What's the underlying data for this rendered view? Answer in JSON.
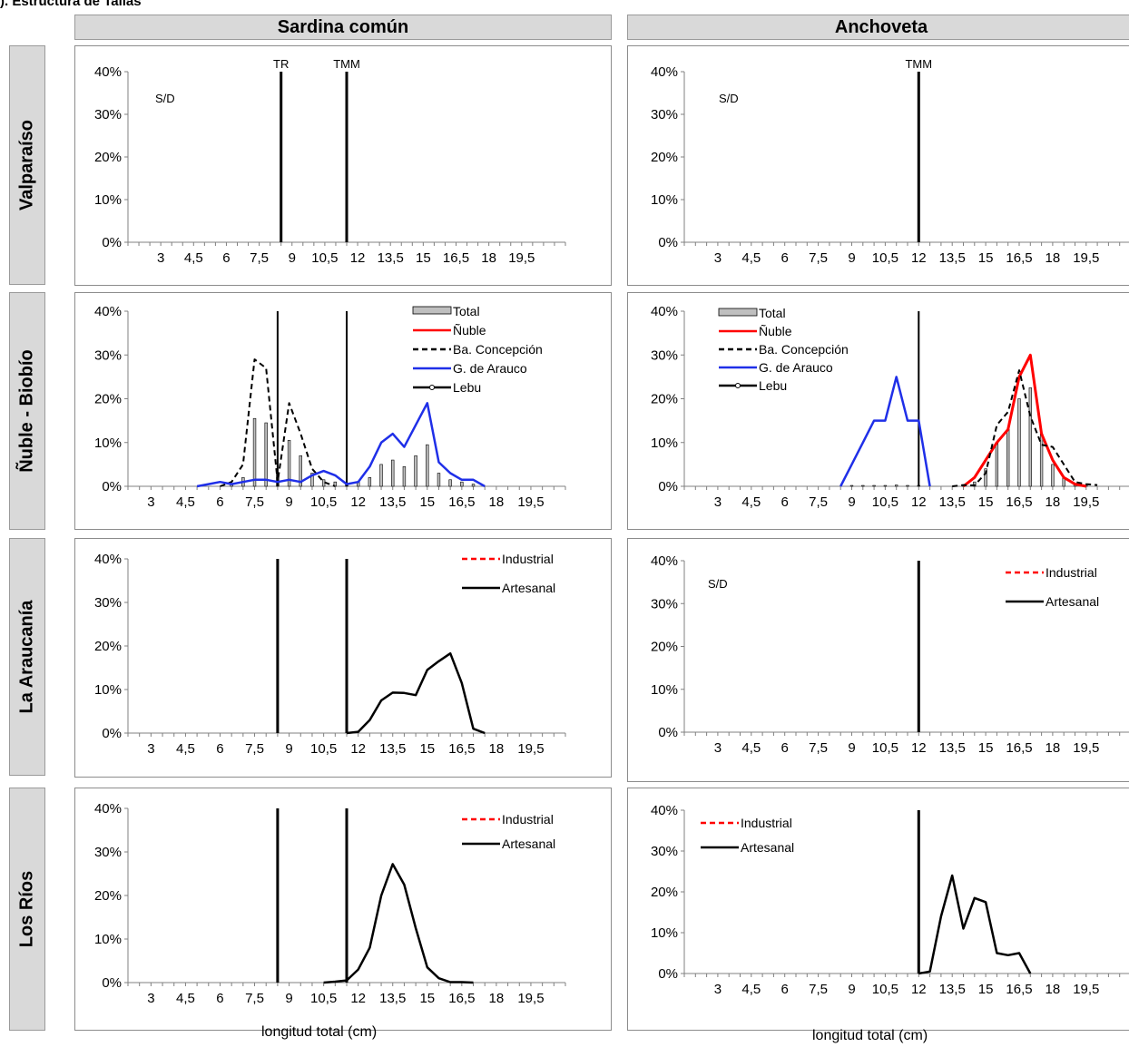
{
  "figure_title": ").  Estructura de Tallas",
  "column_headers": [
    "Sardina común",
    "Anchoveta"
  ],
  "row_headers": [
    "Valparaíso",
    "Ñuble - Biobío",
    "La Araucanía",
    "Los Ríos"
  ],
  "xlabel": "longitud total (cm)",
  "colors": {
    "nuble": "#ff0000",
    "arauco": "#1f2fe8",
    "black": "#000000",
    "bar_fill": "#bfbfbf",
    "header_bg": "#d9d9d9"
  },
  "chart_data": [
    {
      "name": "sardina-valparaiso",
      "type": "line",
      "xlim": [
        1.5,
        21.5
      ],
      "ylim": [
        0,
        0.4
      ],
      "x_ticks": [
        "3",
        "4,5",
        "6",
        "7,5",
        "9",
        "10,5",
        "12",
        "13,5",
        "15",
        "16,5",
        "18",
        "19,5"
      ],
      "y_ticks": [
        "0%",
        "10%",
        "20%",
        "30%",
        "40%"
      ],
      "ref_lines": [
        {
          "x": 8.5,
          "label": "TR",
          "width": 3
        },
        {
          "x": 11.5,
          "label": "TMM",
          "width": 3
        }
      ],
      "note": "S/D",
      "series": [],
      "legend": []
    },
    {
      "name": "anchoveta-valparaiso",
      "type": "line",
      "xlim": [
        1.5,
        21.5
      ],
      "ylim": [
        0,
        0.4
      ],
      "x_ticks": [
        "3",
        "4,5",
        "6",
        "7,5",
        "9",
        "10,5",
        "12",
        "13,5",
        "15",
        "16,5",
        "18",
        "19,5"
      ],
      "y_ticks": [
        "0%",
        "10%",
        "20%",
        "30%",
        "40%"
      ],
      "ref_lines": [
        {
          "x": 12,
          "label": "TMM",
          "width": 3
        }
      ],
      "note": "S/D",
      "series": [],
      "legend": []
    },
    {
      "name": "sardina-nuble-biobio",
      "type": "line",
      "xlim": [
        2,
        21
      ],
      "ylim": [
        0,
        0.4
      ],
      "x_ticks": [
        "3",
        "4,5",
        "6",
        "7,5",
        "9",
        "10,5",
        "12",
        "13,5",
        "15",
        "16,5",
        "18",
        "19,5"
      ],
      "y_ticks": [
        "0%",
        "10%",
        "20%",
        "30%",
        "40%"
      ],
      "ref_lines": [
        {
          "x": 8.5,
          "width": 2
        },
        {
          "x": 11.5,
          "width": 2
        }
      ],
      "bars": {
        "name": "Total",
        "x": [
          6.5,
          7,
          7.5,
          8,
          8.5,
          9,
          9.5,
          10,
          10.5,
          11,
          11.5,
          12,
          12.5,
          13,
          13.5,
          14,
          14.5,
          15,
          15.5,
          16,
          16.5,
          17
        ],
        "values": [
          0.005,
          0.02,
          0.155,
          0.145,
          0.03,
          0.105,
          0.07,
          0.03,
          0.015,
          0.01,
          0.005,
          0.01,
          0.02,
          0.05,
          0.06,
          0.045,
          0.07,
          0.095,
          0.03,
          0.015,
          0.01,
          0.005
        ]
      },
      "series": [
        {
          "name": "Ba. Concepción",
          "style": "dashed",
          "color": "#000000",
          "width": 2,
          "x": [
            6,
            6.5,
            7,
            7.5,
            8,
            8.5,
            9,
            9.5,
            10,
            10.5,
            11
          ],
          "y": [
            0,
            0.01,
            0.05,
            0.29,
            0.27,
            0.01,
            0.19,
            0.12,
            0.04,
            0.01,
            0
          ]
        },
        {
          "name": "G. de Arauco",
          "style": "solid",
          "color": "#1f2fe8",
          "width": 2.5,
          "x": [
            5,
            5.5,
            6,
            6.5,
            7,
            7.5,
            8,
            8.5,
            9,
            9.5,
            10,
            10.5,
            11,
            11.5,
            12,
            12.5,
            13,
            13.5,
            14,
            14.5,
            15,
            15.5,
            16,
            16.5,
            17,
            17.5
          ],
          "y": [
            0,
            0.005,
            0.01,
            0.005,
            0.01,
            0.015,
            0.015,
            0.01,
            0.015,
            0.01,
            0.025,
            0.035,
            0.025,
            0.005,
            0.01,
            0.045,
            0.1,
            0.12,
            0.09,
            0.14,
            0.19,
            0.055,
            0.03,
            0.015,
            0.015,
            0
          ]
        }
      ],
      "legend": [
        {
          "label": "Total",
          "kind": "bar"
        },
        {
          "label": "Ñuble",
          "kind": "line",
          "color": "#ff0000",
          "style": "solid"
        },
        {
          "label": "Ba. Concepción",
          "kind": "line",
          "color": "#000000",
          "style": "dashed"
        },
        {
          "label": "G. de Arauco",
          "kind": "line",
          "color": "#1f2fe8",
          "style": "solid"
        },
        {
          "label": "Lebu",
          "kind": "marker",
          "color": "#000000",
          "style": "solid"
        }
      ]
    },
    {
      "name": "anchoveta-nuble-biobio",
      "type": "line",
      "xlim": [
        1.5,
        21.5
      ],
      "ylim": [
        0,
        0.4
      ],
      "x_ticks": [
        "3",
        "4,5",
        "6",
        "7,5",
        "9",
        "10,5",
        "12",
        "13,5",
        "15",
        "16,5",
        "18",
        "19,5"
      ],
      "y_ticks": [
        "0%",
        "10%",
        "20%",
        "30%",
        "40%"
      ],
      "ref_lines": [
        {
          "x": 12,
          "width": 2
        }
      ],
      "bars": {
        "name": "Total",
        "x": [
          9,
          9.5,
          10,
          10.5,
          11,
          11.5,
          12,
          14,
          14.5,
          15,
          15.5,
          16,
          16.5,
          17,
          17.5,
          18,
          18.5,
          19,
          19.5
        ],
        "values": [
          0.002,
          0.002,
          0.002,
          0.002,
          0.003,
          0.002,
          0.002,
          0.002,
          0.01,
          0.04,
          0.1,
          0.13,
          0.2,
          0.225,
          0.12,
          0.05,
          0.02,
          0.005,
          0.002
        ]
      },
      "series": [
        {
          "name": "G. de Arauco",
          "style": "solid",
          "color": "#1f2fe8",
          "width": 2.5,
          "x": [
            8.5,
            9,
            9.5,
            10,
            10.5,
            11,
            11.5,
            12,
            12.5
          ],
          "y": [
            0,
            0.05,
            0.1,
            0.15,
            0.15,
            0.25,
            0.15,
            0.15,
            0
          ]
        },
        {
          "name": "Ñuble",
          "style": "solid",
          "color": "#ff0000",
          "width": 3,
          "x": [
            14,
            14.5,
            15,
            15.5,
            16,
            16.5,
            17,
            17.5,
            18,
            18.5,
            19,
            19.5
          ],
          "y": [
            0,
            0.02,
            0.06,
            0.1,
            0.13,
            0.25,
            0.3,
            0.12,
            0.06,
            0.02,
            0.005,
            0
          ]
        },
        {
          "name": "Ba. Concepción",
          "style": "dashed",
          "color": "#000000",
          "width": 2,
          "x": [
            13.5,
            14,
            14.5,
            15,
            15.5,
            16,
            16.5,
            17,
            17.5,
            18,
            18.5,
            19,
            19.5,
            20
          ],
          "y": [
            0,
            0.003,
            0.002,
            0.03,
            0.14,
            0.17,
            0.265,
            0.16,
            0.095,
            0.09,
            0.05,
            0.01,
            0.005,
            0.003
          ]
        }
      ],
      "legend": [
        {
          "label": "Total",
          "kind": "bar"
        },
        {
          "label": "Ñuble",
          "kind": "line",
          "color": "#ff0000",
          "style": "solid"
        },
        {
          "label": "Ba. Concepción",
          "kind": "line",
          "color": "#000000",
          "style": "dashed"
        },
        {
          "label": "G. de Arauco",
          "kind": "line",
          "color": "#1f2fe8",
          "style": "solid"
        },
        {
          "label": "Lebu",
          "kind": "marker",
          "color": "#000000",
          "style": "solid"
        }
      ]
    },
    {
      "name": "sardina-araucania",
      "type": "line",
      "xlim": [
        2,
        21
      ],
      "ylim": [
        0,
        0.4
      ],
      "x_ticks": [
        "3",
        "4,5",
        "6",
        "7,5",
        "9",
        "10,5",
        "12",
        "13,5",
        "15",
        "16,5",
        "18",
        "19,5"
      ],
      "y_ticks": [
        "0%",
        "10%",
        "20%",
        "30%",
        "40%"
      ],
      "ref_lines": [
        {
          "x": 8.5,
          "width": 3
        },
        {
          "x": 11.5,
          "width": 3
        }
      ],
      "series": [
        {
          "name": "Artesanal",
          "style": "solid",
          "color": "#000000",
          "width": 2.5,
          "x": [
            11.5,
            12,
            12.5,
            13,
            13.5,
            14,
            14.5,
            15,
            15.5,
            16,
            16.5,
            17,
            17.5
          ],
          "y": [
            0,
            0.003,
            0.03,
            0.075,
            0.093,
            0.092,
            0.087,
            0.145,
            0.165,
            0.183,
            0.115,
            0.01,
            0
          ]
        }
      ],
      "legend": [
        {
          "label": "Industrial",
          "kind": "line",
          "color": "#ff0000",
          "style": "dashed"
        },
        {
          "label": "Artesanal",
          "kind": "line",
          "color": "#000000",
          "style": "solid"
        }
      ]
    },
    {
      "name": "anchoveta-araucania",
      "type": "line",
      "xlim": [
        1.5,
        21.5
      ],
      "ylim": [
        0,
        0.4
      ],
      "x_ticks": [
        "3",
        "4,5",
        "6",
        "7,5",
        "9",
        "10,5",
        "12",
        "13,5",
        "15",
        "16,5",
        "18",
        "19,5"
      ],
      "y_ticks": [
        "0%",
        "10%",
        "20%",
        "30%",
        "40%"
      ],
      "ref_lines": [
        {
          "x": 12,
          "width": 3
        }
      ],
      "note": "S/D",
      "series": [],
      "legend": [
        {
          "label": "Industrial",
          "kind": "line",
          "color": "#ff0000",
          "style": "dashed"
        },
        {
          "label": "Artesanal",
          "kind": "line",
          "color": "#000000",
          "style": "solid"
        }
      ]
    },
    {
      "name": "sardina-los-rios",
      "type": "line",
      "xlim": [
        2,
        21
      ],
      "ylim": [
        0,
        0.4
      ],
      "x_ticks": [
        "3",
        "4,5",
        "6",
        "7,5",
        "9",
        "10,5",
        "12",
        "13,5",
        "15",
        "16,5",
        "18",
        "19,5"
      ],
      "y_ticks": [
        "0%",
        "10%",
        "20%",
        "30%",
        "40%"
      ],
      "ref_lines": [
        {
          "x": 8.5,
          "width": 3
        },
        {
          "x": 11.5,
          "width": 3
        }
      ],
      "series": [
        {
          "name": "Artesanal",
          "style": "solid",
          "color": "#000000",
          "width": 2.5,
          "x": [
            10.5,
            11,
            11.5,
            12,
            12.5,
            13,
            13.5,
            14,
            14.5,
            15,
            15.5,
            16,
            16.5,
            17
          ],
          "y": [
            0,
            0.002,
            0.005,
            0.03,
            0.08,
            0.2,
            0.272,
            0.225,
            0.125,
            0.035,
            0.01,
            0.001,
            0.001,
            0
          ]
        }
      ],
      "legend": [
        {
          "label": "Industrial",
          "kind": "line",
          "color": "#ff0000",
          "style": "dashed"
        },
        {
          "label": "Artesanal",
          "kind": "line",
          "color": "#000000",
          "style": "solid"
        }
      ]
    },
    {
      "name": "anchoveta-los-rios",
      "type": "line",
      "xlim": [
        1.5,
        21.5
      ],
      "ylim": [
        0,
        0.4
      ],
      "x_ticks": [
        "3",
        "4,5",
        "6",
        "7,5",
        "9",
        "10,5",
        "12",
        "13,5",
        "15",
        "16,5",
        "18",
        "19,5"
      ],
      "y_ticks": [
        "0%",
        "10%",
        "20%",
        "30%",
        "40%"
      ],
      "ref_lines": [
        {
          "x": 12,
          "width": 3
        }
      ],
      "series": [
        {
          "name": "Artesanal",
          "style": "solid",
          "color": "#000000",
          "width": 2.5,
          "x": [
            12,
            12.5,
            13,
            13.5,
            14,
            14.5,
            15,
            15.5,
            16,
            16.5,
            17
          ],
          "y": [
            0,
            0.005,
            0.14,
            0.24,
            0.11,
            0.185,
            0.175,
            0.05,
            0.045,
            0.05,
            0
          ]
        }
      ],
      "legend": [
        {
          "label": "Industrial",
          "kind": "line",
          "color": "#ff0000",
          "style": "dashed"
        },
        {
          "label": "Artesanal",
          "kind": "line",
          "color": "#000000",
          "style": "solid"
        }
      ]
    }
  ]
}
